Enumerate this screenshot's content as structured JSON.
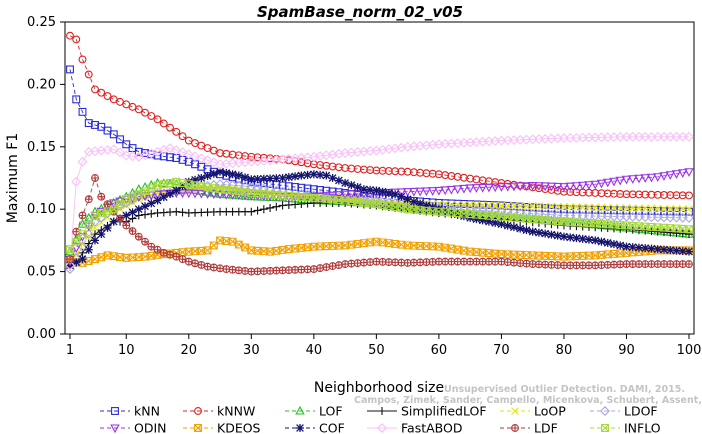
{
  "watermark": [
    "Unsupervised Outlier Detection. DAMI, 2015.",
    "Campos, Zimek, Sander, Campello, Micenkova, Schubert, Assent, Houle"
  ],
  "chart_data": {
    "type": "line",
    "title": "SpamBase_norm_02_v05",
    "xlabel": "Neighborhood size",
    "ylabel": "Maximum F1",
    "xlim": [
      1,
      100
    ],
    "ylim": [
      0,
      0.25
    ],
    "xticks": [
      1,
      10,
      20,
      30,
      40,
      50,
      60,
      70,
      80,
      90,
      100
    ],
    "yticks": [
      "0.00",
      "0.05",
      "0.10",
      "0.15",
      "0.20",
      "0.25"
    ],
    "legend_position": "bottom",
    "series": [
      {
        "name": "kNN",
        "color": "#2b2bd6",
        "marker": "square",
        "dashed": true,
        "points": [
          [
            1,
            0.212
          ],
          [
            2,
            0.188
          ],
          [
            3,
            0.178
          ],
          [
            4,
            0.169
          ],
          [
            6,
            0.166
          ],
          [
            8,
            0.16
          ],
          [
            10,
            0.152
          ],
          [
            12,
            0.146
          ],
          [
            15,
            0.143
          ],
          [
            18,
            0.141
          ],
          [
            20,
            0.138
          ],
          [
            25,
            0.128
          ],
          [
            30,
            0.122
          ],
          [
            35,
            0.119
          ],
          [
            40,
            0.116
          ],
          [
            45,
            0.113
          ],
          [
            50,
            0.109
          ],
          [
            55,
            0.107
          ],
          [
            60,
            0.105
          ],
          [
            70,
            0.103
          ],
          [
            80,
            0.1
          ],
          [
            90,
            0.099
          ],
          [
            100,
            0.098
          ]
        ]
      },
      {
        "name": "kNNW",
        "color": "#e02020",
        "marker": "circle",
        "dashed": true,
        "points": [
          [
            1,
            0.239
          ],
          [
            2,
            0.236
          ],
          [
            3,
            0.22
          ],
          [
            4,
            0.208
          ],
          [
            5,
            0.196
          ],
          [
            8,
            0.188
          ],
          [
            10,
            0.184
          ],
          [
            12,
            0.18
          ],
          [
            15,
            0.172
          ],
          [
            18,
            0.162
          ],
          [
            20,
            0.155
          ],
          [
            25,
            0.145
          ],
          [
            30,
            0.142
          ],
          [
            35,
            0.14
          ],
          [
            40,
            0.136
          ],
          [
            45,
            0.133
          ],
          [
            50,
            0.131
          ],
          [
            55,
            0.13
          ],
          [
            60,
            0.128
          ],
          [
            70,
            0.121
          ],
          [
            80,
            0.114
          ],
          [
            90,
            0.112
          ],
          [
            100,
            0.111
          ]
        ]
      },
      {
        "name": "LOF",
        "color": "#22c022",
        "marker": "triangle-up",
        "dashed": true,
        "points": [
          [
            1,
            0.066
          ],
          [
            2,
            0.075
          ],
          [
            3,
            0.088
          ],
          [
            5,
            0.098
          ],
          [
            8,
            0.105
          ],
          [
            10,
            0.11
          ],
          [
            12,
            0.116
          ],
          [
            15,
            0.121
          ],
          [
            18,
            0.12
          ],
          [
            20,
            0.116
          ],
          [
            25,
            0.112
          ],
          [
            30,
            0.11
          ],
          [
            35,
            0.109
          ],
          [
            40,
            0.107
          ],
          [
            45,
            0.106
          ],
          [
            50,
            0.104
          ],
          [
            55,
            0.101
          ],
          [
            60,
            0.098
          ],
          [
            70,
            0.094
          ],
          [
            80,
            0.09
          ],
          [
            90,
            0.085
          ],
          [
            100,
            0.08
          ]
        ]
      },
      {
        "name": "SimplifiedLOF",
        "color": "#111111",
        "marker": "plus",
        "dashed": false,
        "points": [
          [
            1,
            0.054
          ],
          [
            2,
            0.057
          ],
          [
            3,
            0.065
          ],
          [
            5,
            0.08
          ],
          [
            8,
            0.09
          ],
          [
            10,
            0.09
          ],
          [
            12,
            0.095
          ],
          [
            15,
            0.097
          ],
          [
            18,
            0.098
          ],
          [
            20,
            0.097
          ],
          [
            25,
            0.098
          ],
          [
            30,
            0.098
          ],
          [
            35,
            0.103
          ],
          [
            40,
            0.105
          ],
          [
            45,
            0.105
          ],
          [
            50,
            0.103
          ],
          [
            55,
            0.1
          ],
          [
            60,
            0.097
          ],
          [
            70,
            0.092
          ],
          [
            80,
            0.087
          ],
          [
            90,
            0.084
          ],
          [
            100,
            0.08
          ]
        ]
      },
      {
        "name": "LoOP",
        "color": "#e6e600",
        "marker": "x",
        "dashed": true,
        "points": [
          [
            1,
            0.055
          ],
          [
            3,
            0.072
          ],
          [
            5,
            0.085
          ],
          [
            8,
            0.098
          ],
          [
            10,
            0.103
          ],
          [
            12,
            0.108
          ],
          [
            15,
            0.113
          ],
          [
            18,
            0.114
          ],
          [
            20,
            0.115
          ],
          [
            25,
            0.118
          ],
          [
            30,
            0.115
          ],
          [
            35,
            0.112
          ],
          [
            40,
            0.11
          ],
          [
            45,
            0.108
          ],
          [
            50,
            0.106
          ],
          [
            55,
            0.105
          ],
          [
            60,
            0.104
          ],
          [
            70,
            0.103
          ],
          [
            80,
            0.102
          ],
          [
            90,
            0.101
          ],
          [
            100,
            0.1
          ]
        ]
      },
      {
        "name": "LDOF",
        "color": "#a8a8e0",
        "marker": "diamond",
        "dashed": true,
        "points": [
          [
            1,
            0.052
          ],
          [
            3,
            0.07
          ],
          [
            5,
            0.09
          ],
          [
            8,
            0.1
          ],
          [
            10,
            0.105
          ],
          [
            12,
            0.11
          ],
          [
            15,
            0.112
          ],
          [
            18,
            0.114
          ],
          [
            20,
            0.117
          ],
          [
            25,
            0.12
          ],
          [
            30,
            0.118
          ],
          [
            35,
            0.114
          ],
          [
            40,
            0.111
          ],
          [
            45,
            0.109
          ],
          [
            50,
            0.106
          ],
          [
            55,
            0.104
          ],
          [
            60,
            0.101
          ],
          [
            70,
            0.098
          ],
          [
            80,
            0.095
          ],
          [
            90,
            0.094
          ],
          [
            100,
            0.093
          ]
        ]
      },
      {
        "name": "ODIN",
        "color": "#9932e8",
        "marker": "triangle-down",
        "dashed": true,
        "points": [
          [
            1,
            0.06
          ],
          [
            3,
            0.078
          ],
          [
            5,
            0.095
          ],
          [
            8,
            0.105
          ],
          [
            10,
            0.108
          ],
          [
            12,
            0.11
          ],
          [
            15,
            0.112
          ],
          [
            18,
            0.113
          ],
          [
            20,
            0.113
          ],
          [
            25,
            0.112
          ],
          [
            30,
            0.111
          ],
          [
            35,
            0.11
          ],
          [
            40,
            0.11
          ],
          [
            45,
            0.112
          ],
          [
            50,
            0.113
          ],
          [
            55,
            0.114
          ],
          [
            60,
            0.115
          ],
          [
            65,
            0.117
          ],
          [
            70,
            0.118
          ],
          [
            75,
            0.119
          ],
          [
            80,
            0.118
          ],
          [
            85,
            0.12
          ],
          [
            90,
            0.124
          ],
          [
            95,
            0.126
          ],
          [
            100,
            0.13
          ]
        ]
      },
      {
        "name": "KDEOS",
        "color": "#f0a000",
        "marker": "square-x",
        "dashed": true,
        "points": [
          [
            1,
            0.058
          ],
          [
            3,
            0.057
          ],
          [
            5,
            0.06
          ],
          [
            7,
            0.063
          ],
          [
            10,
            0.061
          ],
          [
            13,
            0.062
          ],
          [
            16,
            0.064
          ],
          [
            20,
            0.066
          ],
          [
            23,
            0.067
          ],
          [
            25,
            0.075
          ],
          [
            27,
            0.074
          ],
          [
            30,
            0.067
          ],
          [
            33,
            0.066
          ],
          [
            36,
            0.068
          ],
          [
            40,
            0.07
          ],
          [
            45,
            0.071
          ],
          [
            50,
            0.074
          ],
          [
            55,
            0.071
          ],
          [
            60,
            0.07
          ],
          [
            65,
            0.066
          ],
          [
            70,
            0.064
          ],
          [
            75,
            0.063
          ],
          [
            80,
            0.062
          ],
          [
            85,
            0.063
          ],
          [
            90,
            0.065
          ],
          [
            95,
            0.067
          ],
          [
            100,
            0.067
          ]
        ]
      },
      {
        "name": "COF",
        "color": "#14146e",
        "marker": "asterisk",
        "dashed": true,
        "points": [
          [
            1,
            0.055
          ],
          [
            3,
            0.06
          ],
          [
            5,
            0.075
          ],
          [
            8,
            0.09
          ],
          [
            10,
            0.095
          ],
          [
            12,
            0.1
          ],
          [
            15,
            0.107
          ],
          [
            18,
            0.115
          ],
          [
            20,
            0.122
          ],
          [
            22,
            0.125
          ],
          [
            25,
            0.13
          ],
          [
            28,
            0.127
          ],
          [
            30,
            0.124
          ],
          [
            35,
            0.125
          ],
          [
            38,
            0.127
          ],
          [
            40,
            0.128
          ],
          [
            42,
            0.127
          ],
          [
            45,
            0.121
          ],
          [
            48,
            0.116
          ],
          [
            50,
            0.115
          ],
          [
            53,
            0.112
          ],
          [
            56,
            0.106
          ],
          [
            60,
            0.1
          ],
          [
            65,
            0.093
          ],
          [
            70,
            0.088
          ],
          [
            75,
            0.082
          ],
          [
            80,
            0.078
          ],
          [
            85,
            0.075
          ],
          [
            90,
            0.07
          ],
          [
            95,
            0.068
          ],
          [
            100,
            0.066
          ]
        ]
      },
      {
        "name": "FastABOD",
        "color": "#f8c0f8",
        "marker": "diamond",
        "dashed": false,
        "points": [
          [
            1,
            0.055
          ],
          [
            2,
            0.122
          ],
          [
            3,
            0.138
          ],
          [
            4,
            0.146
          ],
          [
            6,
            0.147
          ],
          [
            8,
            0.148
          ],
          [
            10,
            0.143
          ],
          [
            12,
            0.142
          ],
          [
            15,
            0.146
          ],
          [
            17,
            0.149
          ],
          [
            20,
            0.144
          ],
          [
            25,
            0.136
          ],
          [
            30,
            0.138
          ],
          [
            35,
            0.14
          ],
          [
            40,
            0.142
          ],
          [
            45,
            0.145
          ],
          [
            50,
            0.147
          ],
          [
            55,
            0.15
          ],
          [
            60,
            0.152
          ],
          [
            70,
            0.155
          ],
          [
            80,
            0.157
          ],
          [
            90,
            0.158
          ],
          [
            100,
            0.158
          ]
        ]
      },
      {
        "name": "LDF",
        "color": "#b03a3a",
        "marker": "circle-plus",
        "dashed": true,
        "points": [
          [
            1,
            0.06
          ],
          [
            2,
            0.082
          ],
          [
            3,
            0.095
          ],
          [
            4,
            0.108
          ],
          [
            5,
            0.125
          ],
          [
            6,
            0.11
          ],
          [
            8,
            0.098
          ],
          [
            10,
            0.087
          ],
          [
            12,
            0.078
          ],
          [
            14,
            0.07
          ],
          [
            16,
            0.065
          ],
          [
            18,
            0.062
          ],
          [
            20,
            0.058
          ],
          [
            23,
            0.054
          ],
          [
            26,
            0.052
          ],
          [
            30,
            0.05
          ],
          [
            35,
            0.051
          ],
          [
            40,
            0.052
          ],
          [
            45,
            0.056
          ],
          [
            50,
            0.058
          ],
          [
            55,
            0.057
          ],
          [
            60,
            0.058
          ],
          [
            65,
            0.058
          ],
          [
            70,
            0.058
          ],
          [
            75,
            0.056
          ],
          [
            80,
            0.055
          ],
          [
            85,
            0.055
          ],
          [
            90,
            0.056
          ],
          [
            95,
            0.056
          ],
          [
            100,
            0.056
          ]
        ]
      },
      {
        "name": "INFLO",
        "color": "#a8d83a",
        "marker": "square-x",
        "dashed": true,
        "points": [
          [
            1,
            0.068
          ],
          [
            3,
            0.08
          ],
          [
            5,
            0.095
          ],
          [
            8,
            0.1
          ],
          [
            10,
            0.108
          ],
          [
            12,
            0.112
          ],
          [
            15,
            0.119
          ],
          [
            18,
            0.122
          ],
          [
            20,
            0.12
          ],
          [
            25,
            0.116
          ],
          [
            30,
            0.113
          ],
          [
            35,
            0.111
          ],
          [
            40,
            0.109
          ],
          [
            45,
            0.107
          ],
          [
            50,
            0.104
          ],
          [
            55,
            0.1
          ],
          [
            60,
            0.098
          ],
          [
            70,
            0.094
          ],
          [
            80,
            0.09
          ],
          [
            90,
            0.087
          ],
          [
            100,
            0.084
          ]
        ]
      }
    ]
  }
}
